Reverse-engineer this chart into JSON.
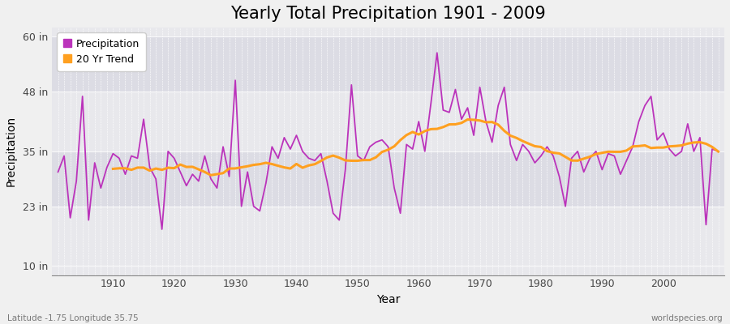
{
  "title": "Yearly Total Precipitation 1901 - 2009",
  "xlabel": "Year",
  "ylabel": "Precipitation",
  "lat_lon_label": "Latitude -1.75 Longitude 35.75",
  "watermark": "worldspecies.org",
  "years": [
    1901,
    1902,
    1903,
    1904,
    1905,
    1906,
    1907,
    1908,
    1909,
    1910,
    1911,
    1912,
    1913,
    1914,
    1915,
    1916,
    1917,
    1918,
    1919,
    1920,
    1921,
    1922,
    1923,
    1924,
    1925,
    1926,
    1927,
    1928,
    1929,
    1930,
    1931,
    1932,
    1933,
    1934,
    1935,
    1936,
    1937,
    1938,
    1939,
    1940,
    1941,
    1942,
    1943,
    1944,
    1945,
    1946,
    1947,
    1948,
    1949,
    1950,
    1951,
    1952,
    1953,
    1954,
    1955,
    1956,
    1957,
    1958,
    1959,
    1960,
    1961,
    1962,
    1963,
    1964,
    1965,
    1966,
    1967,
    1968,
    1969,
    1970,
    1971,
    1972,
    1973,
    1974,
    1975,
    1976,
    1977,
    1978,
    1979,
    1980,
    1981,
    1982,
    1983,
    1984,
    1985,
    1986,
    1987,
    1988,
    1989,
    1990,
    1991,
    1992,
    1993,
    1994,
    1995,
    1996,
    1997,
    1998,
    1999,
    2000,
    2001,
    2002,
    2003,
    2004,
    2005,
    2006,
    2007,
    2008,
    2009
  ],
  "precip_in": [
    30.5,
    34.0,
    20.5,
    28.5,
    47.0,
    20.0,
    32.5,
    27.0,
    31.5,
    34.5,
    33.5,
    30.0,
    34.0,
    33.5,
    42.0,
    31.5,
    29.0,
    18.0,
    35.0,
    33.5,
    30.5,
    27.5,
    30.0,
    28.5,
    34.0,
    29.0,
    27.0,
    36.0,
    29.5,
    50.5,
    23.0,
    30.5,
    23.0,
    22.0,
    28.0,
    36.0,
    33.5,
    38.0,
    35.5,
    38.5,
    35.0,
    33.5,
    33.0,
    34.5,
    28.5,
    21.5,
    20.0,
    31.0,
    49.5,
    34.0,
    33.0,
    36.0,
    37.0,
    37.5,
    36.0,
    27.0,
    21.5,
    36.5,
    35.5,
    41.5,
    35.0,
    45.5,
    56.5,
    44.0,
    43.5,
    48.5,
    42.0,
    44.5,
    38.5,
    49.0,
    41.5,
    37.0,
    45.0,
    49.0,
    36.5,
    33.0,
    36.5,
    35.0,
    32.5,
    34.0,
    36.0,
    34.0,
    29.5,
    23.0,
    33.5,
    35.0,
    30.5,
    33.5,
    35.0,
    31.0,
    34.5,
    34.0,
    30.0,
    33.0,
    36.0,
    41.5,
    45.0,
    47.0,
    37.5,
    39.0,
    35.5,
    34.0,
    35.0,
    41.0,
    35.0,
    38.0,
    19.0,
    35.5,
    35.0
  ],
  "trend_start_year": 1910,
  "trend_end_year": 2009,
  "precip_color": "#BB33BB",
  "trend_color": "#FFA020",
  "bg_color": "#F0F0F0",
  "plot_bg_light": "#E8E8EC",
  "plot_bg_dark": "#DCDCE4",
  "grid_color": "#FFFFFF",
  "yticks": [
    10,
    23,
    35,
    48,
    60
  ],
  "ytick_labels": [
    "10 in",
    "23 in",
    "35 in",
    "48 in",
    "60 in"
  ],
  "ylim": [
    8,
    62
  ],
  "xlim": [
    1900,
    2010
  ],
  "xticks": [
    1910,
    1920,
    1930,
    1940,
    1950,
    1960,
    1970,
    1980,
    1990,
    2000
  ],
  "title_fontsize": 15,
  "axis_label_fontsize": 10,
  "tick_fontsize": 9,
  "legend_fontsize": 9
}
